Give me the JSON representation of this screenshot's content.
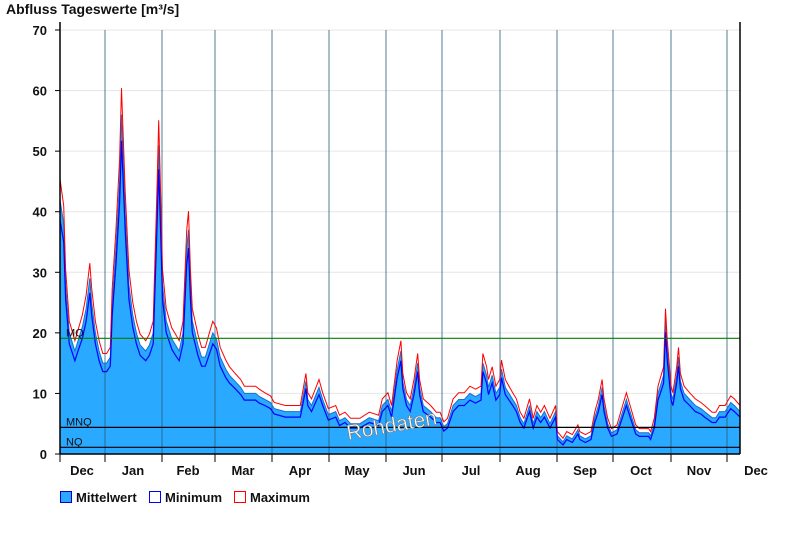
{
  "chart_data": {
    "type": "area",
    "title": "Abfluss Tageswerte [m³/s]",
    "ylim": [
      0,
      70
    ],
    "yticks": [
      "0",
      "10",
      "20",
      "30",
      "40",
      "50",
      "60",
      "70"
    ],
    "month_labels": [
      "Dec",
      "Jan",
      "Feb",
      "Mar",
      "Apr",
      "May",
      "Jun",
      "Jul",
      "Aug",
      "Sep",
      "Oct",
      "Nov",
      "Dec"
    ],
    "grid": true,
    "legend_position": "bottom-left",
    "watermark": "Rohdaten",
    "reference_lines": [
      {
        "name": "MQ",
        "value": 19.1,
        "color": "#008000"
      },
      {
        "name": "MNQ",
        "value": 4.4,
        "color": "#000000"
      },
      {
        "name": "NQ",
        "value": 1.1,
        "color": "#000000"
      }
    ],
    "x_days": [
      0,
      2,
      3,
      5,
      8,
      10,
      12,
      14,
      16,
      17,
      19,
      21,
      23,
      25,
      27,
      28,
      30,
      32,
      33,
      35,
      37,
      39,
      41,
      43,
      46,
      48,
      50,
      52,
      53,
      54,
      55,
      57,
      60,
      62,
      64,
      66,
      68,
      69,
      70,
      71,
      74,
      76,
      78,
      80,
      82,
      84,
      86,
      89,
      91,
      94,
      97,
      99,
      102,
      105,
      107,
      110,
      113,
      115,
      121,
      129,
      132,
      133,
      135,
      139,
      141,
      144,
      148,
      150,
      153,
      156,
      161,
      166,
      171,
      173,
      176,
      178,
      181,
      183,
      184,
      186,
      188,
      190,
      192,
      193,
      195,
      199,
      202,
      204,
      206,
      208,
      211,
      214,
      217,
      220,
      223,
      226,
      227,
      229,
      230,
      232,
      234,
      236,
      237,
      239,
      241,
      243,
      245,
      247,
      249,
      251,
      252,
      254,
      256,
      258,
      260,
      263,
      266,
      267,
      270,
      272,
      275,
      278,
      279,
      282,
      285,
      287,
      289,
      291,
      292,
      294,
      296,
      299,
      302,
      304,
      306,
      309,
      311,
      316,
      317,
      319,
      321,
      322,
      324,
      325,
      326,
      328,
      329,
      331,
      332,
      333,
      335,
      338,
      341,
      344,
      346,
      350,
      352,
      354,
      357,
      360,
      362,
      365
    ],
    "series": [
      {
        "name": "Mittelwert",
        "color": "#29a9ff",
        "values": [
          42,
          38,
          28,
          20,
          17,
          19,
          21,
          24,
          29,
          25,
          20,
          17,
          15,
          15,
          16,
          25,
          34,
          45,
          56,
          40,
          28,
          23,
          20,
          18,
          17,
          18,
          20,
          40,
          51,
          40,
          28,
          22,
          19,
          18,
          17,
          20,
          34,
          37,
          28,
          22,
          18,
          16,
          16,
          18,
          20,
          19,
          16,
          14,
          13,
          12,
          11,
          10,
          10,
          10,
          9.5,
          9,
          8.5,
          7.5,
          7,
          7,
          12,
          9,
          8,
          11,
          9,
          6.5,
          7,
          5.5,
          6,
          5,
          5,
          6,
          5.5,
          8,
          9,
          7,
          14,
          17,
          12,
          9,
          8,
          11,
          15,
          11,
          8,
          7,
          6,
          6,
          4.5,
          5,
          8,
          9,
          9,
          10,
          9.5,
          10,
          15,
          13,
          11,
          13,
          10,
          11,
          14,
          11,
          10,
          9,
          8,
          6,
          5,
          7,
          8,
          5,
          7,
          6,
          7,
          5,
          7,
          3,
          2,
          3,
          2.5,
          4,
          3,
          2.5,
          3,
          6,
          8,
          11,
          8,
          5,
          3.5,
          4,
          7,
          9,
          7,
          4,
          3.5,
          3.5,
          3,
          5,
          10,
          11,
          13,
          22,
          17,
          10,
          9,
          13,
          16,
          12,
          10,
          9,
          8,
          7.5,
          7,
          6,
          6,
          7,
          7,
          8.5,
          8,
          7
        ]
      },
      {
        "name": "Minimum",
        "color": "#0000ff",
        "values": [
          38.7,
          35,
          25.6,
          18.2,
          15.4,
          17.3,
          19.1,
          21.9,
          26.6,
          22.9,
          18.2,
          15.4,
          13.6,
          13.6,
          14.5,
          22.9,
          31.2,
          41.4,
          51.7,
          36.8,
          25.6,
          21,
          18.2,
          16.3,
          15.4,
          16.3,
          18.2,
          36.8,
          47,
          36.8,
          25.6,
          20.1,
          17.3,
          16.3,
          15.4,
          18.2,
          31.2,
          34,
          25.6,
          20.1,
          16.3,
          14.5,
          14.5,
          16.3,
          18.2,
          17.3,
          14.5,
          12.6,
          11.7,
          10.8,
          9.8,
          8.9,
          8.9,
          8.9,
          8.4,
          8,
          7.5,
          6.6,
          6.1,
          6.1,
          10.8,
          8,
          7,
          9.8,
          8,
          5.6,
          6.1,
          4.7,
          5.2,
          4.3,
          4.3,
          5.2,
          4.7,
          7,
          8,
          6.1,
          12.6,
          15.4,
          10.8,
          8,
          7,
          9.8,
          13.6,
          9.8,
          7,
          6.1,
          5.2,
          5.2,
          3.8,
          4.3,
          7,
          8,
          8,
          8.9,
          8.4,
          8.9,
          13.6,
          11.7,
          9.8,
          11.7,
          8.9,
          9.8,
          12.6,
          9.8,
          8.9,
          8,
          7,
          5.2,
          4.3,
          6.1,
          7,
          4.3,
          6.1,
          5.2,
          6.1,
          4.3,
          6.1,
          2.4,
          1.5,
          2.4,
          1.9,
          3.3,
          2.4,
          1.9,
          2.4,
          5.2,
          7,
          9.8,
          7,
          4.3,
          2.9,
          3.3,
          6.1,
          8,
          6.1,
          3.3,
          2.9,
          2.9,
          2.4,
          4.3,
          8.9,
          9.8,
          11.7,
          20.1,
          15.4,
          8.9,
          8,
          11.7,
          14.5,
          10.8,
          8.9,
          8,
          7,
          6.6,
          6.1,
          5.2,
          5.2,
          6.1,
          6.1,
          7.5,
          7,
          6.1
        ]
      },
      {
        "name": "Maximum",
        "color": "#ff0000",
        "values": [
          45.4,
          41,
          30.5,
          21.9,
          18.7,
          20.8,
          23,
          26.2,
          31.5,
          27.3,
          21.9,
          18.7,
          16.6,
          16.6,
          17.6,
          27.3,
          36.9,
          48.7,
          60.4,
          43.3,
          30.5,
          25.1,
          21.9,
          19.8,
          18.7,
          19.8,
          21.9,
          43.3,
          55.1,
          43.3,
          30.5,
          24,
          20.8,
          19.8,
          18.7,
          21.9,
          36.9,
          40.1,
          30.5,
          24,
          19.8,
          17.6,
          17.6,
          19.8,
          21.9,
          20.8,
          17.6,
          15.5,
          14.4,
          13.3,
          12.3,
          11.2,
          11.2,
          11.2,
          10.7,
          10.1,
          9.6,
          8.5,
          8,
          8,
          13.3,
          10.1,
          9.1,
          12.3,
          10.1,
          7.5,
          8,
          6.4,
          6.9,
          5.9,
          5.9,
          6.9,
          6.4,
          9.1,
          10.1,
          8,
          15.5,
          18.7,
          13.3,
          10.1,
          9.1,
          12.3,
          16.6,
          12.3,
          9.1,
          8,
          6.9,
          6.9,
          5.3,
          5.9,
          9.1,
          10.1,
          10.1,
          11.2,
          10.7,
          11.2,
          16.6,
          14.4,
          12.3,
          14.4,
          11.2,
          12.3,
          15.5,
          12.3,
          11.2,
          10.1,
          9.1,
          6.9,
          5.9,
          8,
          9.1,
          5.9,
          8,
          6.9,
          8,
          5.9,
          8,
          3.7,
          2.6,
          3.7,
          3.2,
          4.8,
          3.7,
          3.2,
          3.7,
          6.9,
          9.1,
          12.3,
          9.1,
          5.9,
          4.2,
          4.8,
          8,
          10.1,
          8,
          4.8,
          4.2,
          4.2,
          3.7,
          5.9,
          11.2,
          12.3,
          14.4,
          24,
          18.7,
          11.2,
          10.1,
          14.4,
          17.6,
          13.3,
          11.2,
          10.1,
          9.1,
          8.5,
          8,
          6.9,
          6.9,
          8,
          8,
          9.6,
          9.1,
          8
        ]
      }
    ]
  }
}
